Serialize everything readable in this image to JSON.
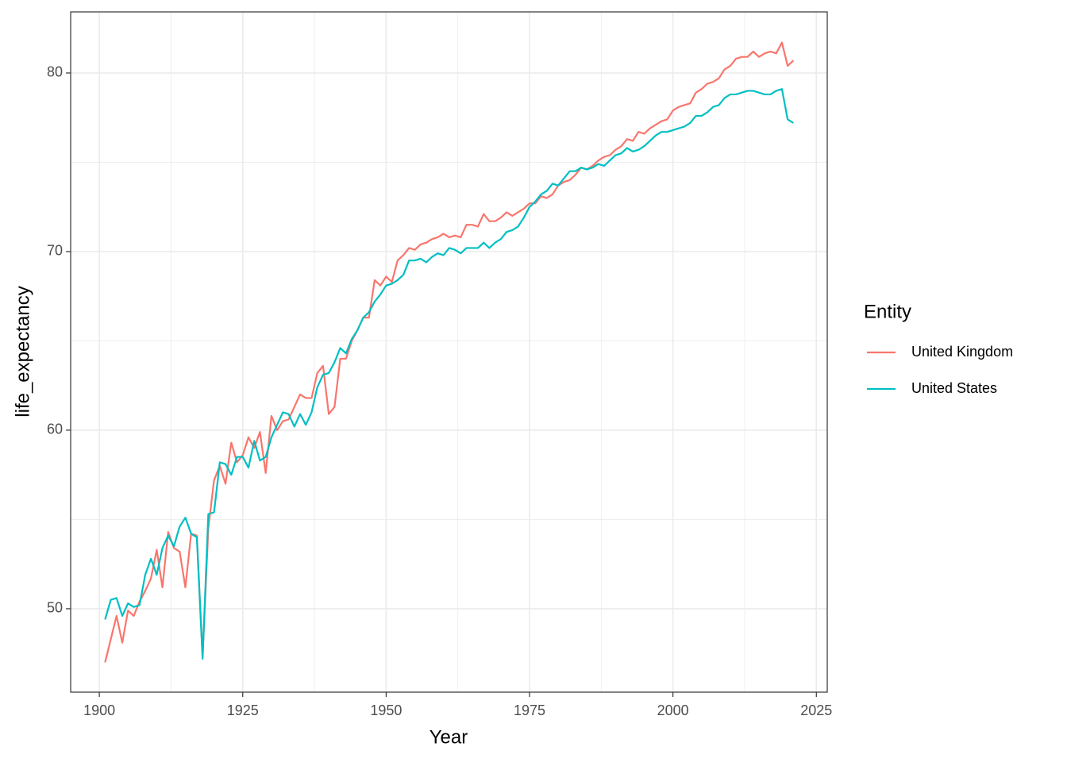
{
  "chart_data": {
    "type": "line",
    "x_label": "Year",
    "y_label": "life_expectancy",
    "legend_title": "Entity",
    "legend_position": "right",
    "grid": true,
    "xlim": [
      1895.0,
      2026.9
    ],
    "ylim": [
      45.33,
      83.42
    ],
    "xticks": [
      1900,
      1925,
      1950,
      1975,
      2000,
      2025
    ],
    "yticks": [
      50,
      60,
      70,
      80
    ],
    "x": [
      1901,
      1902,
      1903,
      1904,
      1905,
      1906,
      1907,
      1908,
      1909,
      1910,
      1911,
      1912,
      1913,
      1914,
      1915,
      1916,
      1917,
      1918,
      1919,
      1920,
      1921,
      1922,
      1923,
      1924,
      1925,
      1926,
      1927,
      1928,
      1929,
      1930,
      1931,
      1932,
      1933,
      1934,
      1935,
      1936,
      1937,
      1938,
      1939,
      1940,
      1941,
      1942,
      1943,
      1944,
      1945,
      1946,
      1947,
      1948,
      1949,
      1950,
      1951,
      1952,
      1953,
      1954,
      1955,
      1956,
      1957,
      1958,
      1959,
      1960,
      1961,
      1962,
      1963,
      1964,
      1965,
      1966,
      1967,
      1968,
      1969,
      1970,
      1971,
      1972,
      1973,
      1974,
      1975,
      1976,
      1977,
      1978,
      1979,
      1980,
      1981,
      1982,
      1983,
      1984,
      1985,
      1986,
      1987,
      1988,
      1989,
      1990,
      1991,
      1992,
      1993,
      1994,
      1995,
      1996,
      1997,
      1998,
      1999,
      2000,
      2001,
      2002,
      2003,
      2004,
      2005,
      2006,
      2007,
      2008,
      2009,
      2010,
      2011,
      2012,
      2013,
      2014,
      2015,
      2016,
      2017,
      2018,
      2019,
      2020,
      2021
    ],
    "series": [
      {
        "name": "United Kingdom",
        "color": "#F8766D",
        "values": [
          47.0,
          48.3,
          49.6,
          48.1,
          49.9,
          49.6,
          50.4,
          51.0,
          51.7,
          53.3,
          51.2,
          54.3,
          53.4,
          53.2,
          51.2,
          54.2,
          54.1,
          47.3,
          54.5,
          57.2,
          58.0,
          57.0,
          59.3,
          58.2,
          58.6,
          59.6,
          59.0,
          59.9,
          57.6,
          60.8,
          60.0,
          60.5,
          60.6,
          61.3,
          62.0,
          61.8,
          61.8,
          63.2,
          63.6,
          60.9,
          61.3,
          64.0,
          64.0,
          65.0,
          65.6,
          66.3,
          66.3,
          68.4,
          68.1,
          68.6,
          68.3,
          69.5,
          69.8,
          70.2,
          70.1,
          70.4,
          70.5,
          70.7,
          70.8,
          71.0,
          70.8,
          70.9,
          70.8,
          71.5,
          71.5,
          71.4,
          72.1,
          71.7,
          71.7,
          71.9,
          72.2,
          72.0,
          72.2,
          72.4,
          72.7,
          72.7,
          73.1,
          73.0,
          73.2,
          73.7,
          73.9,
          74.0,
          74.3,
          74.7,
          74.6,
          74.8,
          75.1,
          75.3,
          75.4,
          75.7,
          75.9,
          76.3,
          76.2,
          76.7,
          76.6,
          76.9,
          77.1,
          77.3,
          77.4,
          77.9,
          78.1,
          78.2,
          78.3,
          78.9,
          79.1,
          79.4,
          79.5,
          79.7,
          80.2,
          80.4,
          80.8,
          80.9,
          80.9,
          81.2,
          80.9,
          81.1,
          81.2,
          81.1,
          81.7,
          80.4,
          80.7
        ]
      },
      {
        "name": "United States",
        "color": "#00BFC4",
        "values": [
          49.4,
          50.5,
          50.6,
          49.6,
          50.3,
          50.1,
          50.2,
          51.9,
          52.8,
          51.9,
          53.4,
          54.1,
          53.5,
          54.6,
          55.1,
          54.2,
          54.0,
          47.2,
          55.3,
          55.4,
          58.2,
          58.1,
          57.5,
          58.5,
          58.5,
          57.9,
          59.4,
          58.3,
          58.5,
          59.6,
          60.3,
          61.0,
          60.9,
          60.2,
          60.9,
          60.3,
          61.0,
          62.4,
          63.1,
          63.2,
          63.8,
          64.6,
          64.3,
          65.1,
          65.6,
          66.3,
          66.6,
          67.2,
          67.6,
          68.1,
          68.2,
          68.4,
          68.7,
          69.5,
          69.5,
          69.6,
          69.4,
          69.7,
          69.9,
          69.8,
          70.2,
          70.1,
          69.9,
          70.2,
          70.2,
          70.2,
          70.5,
          70.2,
          70.5,
          70.7,
          71.1,
          71.2,
          71.4,
          71.9,
          72.5,
          72.8,
          73.2,
          73.4,
          73.8,
          73.7,
          74.1,
          74.5,
          74.5,
          74.7,
          74.6,
          74.7,
          74.9,
          74.8,
          75.1,
          75.4,
          75.5,
          75.8,
          75.6,
          75.7,
          75.9,
          76.2,
          76.5,
          76.7,
          76.7,
          76.8,
          76.9,
          77.0,
          77.2,
          77.6,
          77.6,
          77.8,
          78.1,
          78.2,
          78.6,
          78.8,
          78.8,
          78.9,
          79.0,
          79.0,
          78.9,
          78.8,
          78.8,
          79.0,
          79.1,
          77.4,
          77.2
        ]
      }
    ]
  }
}
